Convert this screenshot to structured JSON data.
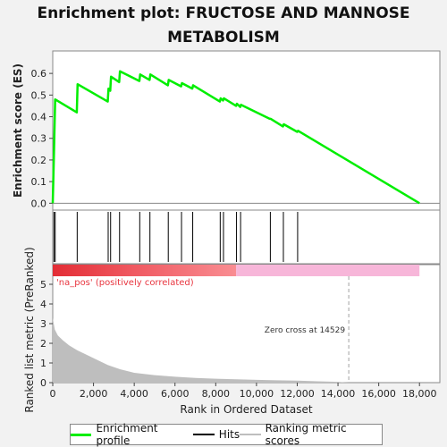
{
  "title_line1": "Enrichment plot: FRUCTOSE AND MANNOSE",
  "title_line2": "METABOLISM",
  "legend": {
    "enrichment_label": "Enrichment profile",
    "hits_label": "Hits",
    "metric_label": "Ranking metric scores"
  },
  "colors": {
    "enrichment": "#00ee00",
    "hits": "#000000",
    "metric_fill": "#bebebe",
    "pos_band": "#e8353f",
    "neg_band": "#f7b6d9",
    "zero_line": "#a0a0a0"
  },
  "chart_data": {
    "type": "line",
    "top_panel": {
      "ylabel": "Enrichment score (ES)",
      "ylim": [
        -0.03,
        0.66
      ],
      "yticks": [
        0.0,
        0.1,
        0.2,
        0.3,
        0.4,
        0.5,
        0.6
      ],
      "ytick_labels": [
        "0.0",
        "0.1",
        "0.2",
        "0.3",
        "0.4",
        "0.5",
        "0.6"
      ],
      "es_points": [
        [
          0,
          0.0
        ],
        [
          60,
          0.24
        ],
        [
          120,
          0.48
        ],
        [
          1180,
          0.42
        ],
        [
          1220,
          0.55
        ],
        [
          2700,
          0.47
        ],
        [
          2740,
          0.53
        ],
        [
          2820,
          0.52
        ],
        [
          2860,
          0.585
        ],
        [
          3260,
          0.56
        ],
        [
          3300,
          0.61
        ],
        [
          4250,
          0.565
        ],
        [
          4290,
          0.595
        ],
        [
          4750,
          0.57
        ],
        [
          4790,
          0.595
        ],
        [
          5650,
          0.545
        ],
        [
          5690,
          0.57
        ],
        [
          6300,
          0.54
        ],
        [
          6340,
          0.555
        ],
        [
          6850,
          0.53
        ],
        [
          6890,
          0.545
        ],
        [
          8200,
          0.47
        ],
        [
          8240,
          0.485
        ],
        [
          8360,
          0.475
        ],
        [
          8400,
          0.485
        ],
        [
          9000,
          0.45
        ],
        [
          9040,
          0.46
        ],
        [
          9200,
          0.445
        ],
        [
          9240,
          0.455
        ],
        [
          10650,
          0.39
        ],
        [
          10700,
          0.39
        ],
        [
          11300,
          0.355
        ],
        [
          11340,
          0.365
        ],
        [
          12000,
          0.33
        ],
        [
          12040,
          0.335
        ],
        [
          18000,
          0.0
        ]
      ]
    },
    "hits_panel": {
      "hit_ranks": [
        60,
        120,
        1200,
        2720,
        2840,
        3280,
        4270,
        4770,
        5670,
        6320,
        6870,
        8220,
        8380,
        9020,
        9220,
        10680,
        11320,
        12020
      ]
    },
    "band": {
      "pos_end": 9000,
      "n_max": 18000
    },
    "bottom_panel": {
      "ylabel": "Ranked list metric (PreRanked)",
      "xlabel": "Rank in Ordered Dataset",
      "ylim": [
        0,
        5.5
      ],
      "yticks": [
        0,
        1,
        2,
        3,
        4,
        5
      ],
      "ytick_labels": [
        "0",
        "1",
        "2",
        "3",
        "4",
        "5"
      ],
      "xlim": [
        0,
        19000
      ],
      "xticks": [
        0,
        2000,
        4000,
        6000,
        8000,
        10000,
        12000,
        14000,
        16000,
        18000
      ],
      "xtick_labels": [
        "0",
        "2,000",
        "4,000",
        "6,000",
        "8,000",
        "10,000",
        "12,000",
        "14,000",
        "16,000",
        "18,000"
      ],
      "metric_points": [
        [
          0,
          3.3
        ],
        [
          30,
          3.1
        ],
        [
          100,
          2.7
        ],
        [
          250,
          2.4
        ],
        [
          500,
          2.15
        ],
        [
          800,
          1.9
        ],
        [
          1200,
          1.65
        ],
        [
          1700,
          1.4
        ],
        [
          2200,
          1.15
        ],
        [
          2700,
          0.9
        ],
        [
          3300,
          0.68
        ],
        [
          4000,
          0.5
        ],
        [
          5000,
          0.38
        ],
        [
          6000,
          0.3
        ],
        [
          7000,
          0.24
        ],
        [
          8000,
          0.2
        ],
        [
          9000,
          0.17
        ],
        [
          10000,
          0.14
        ],
        [
          11000,
          0.12
        ],
        [
          12000,
          0.1
        ],
        [
          13000,
          0.07
        ],
        [
          14000,
          0.04
        ],
        [
          14529,
          0.0
        ]
      ],
      "zero_cross_rank": 14529,
      "zero_cross_label": "Zero cross at 14529",
      "pos_label": "'na_pos' (positively correlated)"
    }
  }
}
